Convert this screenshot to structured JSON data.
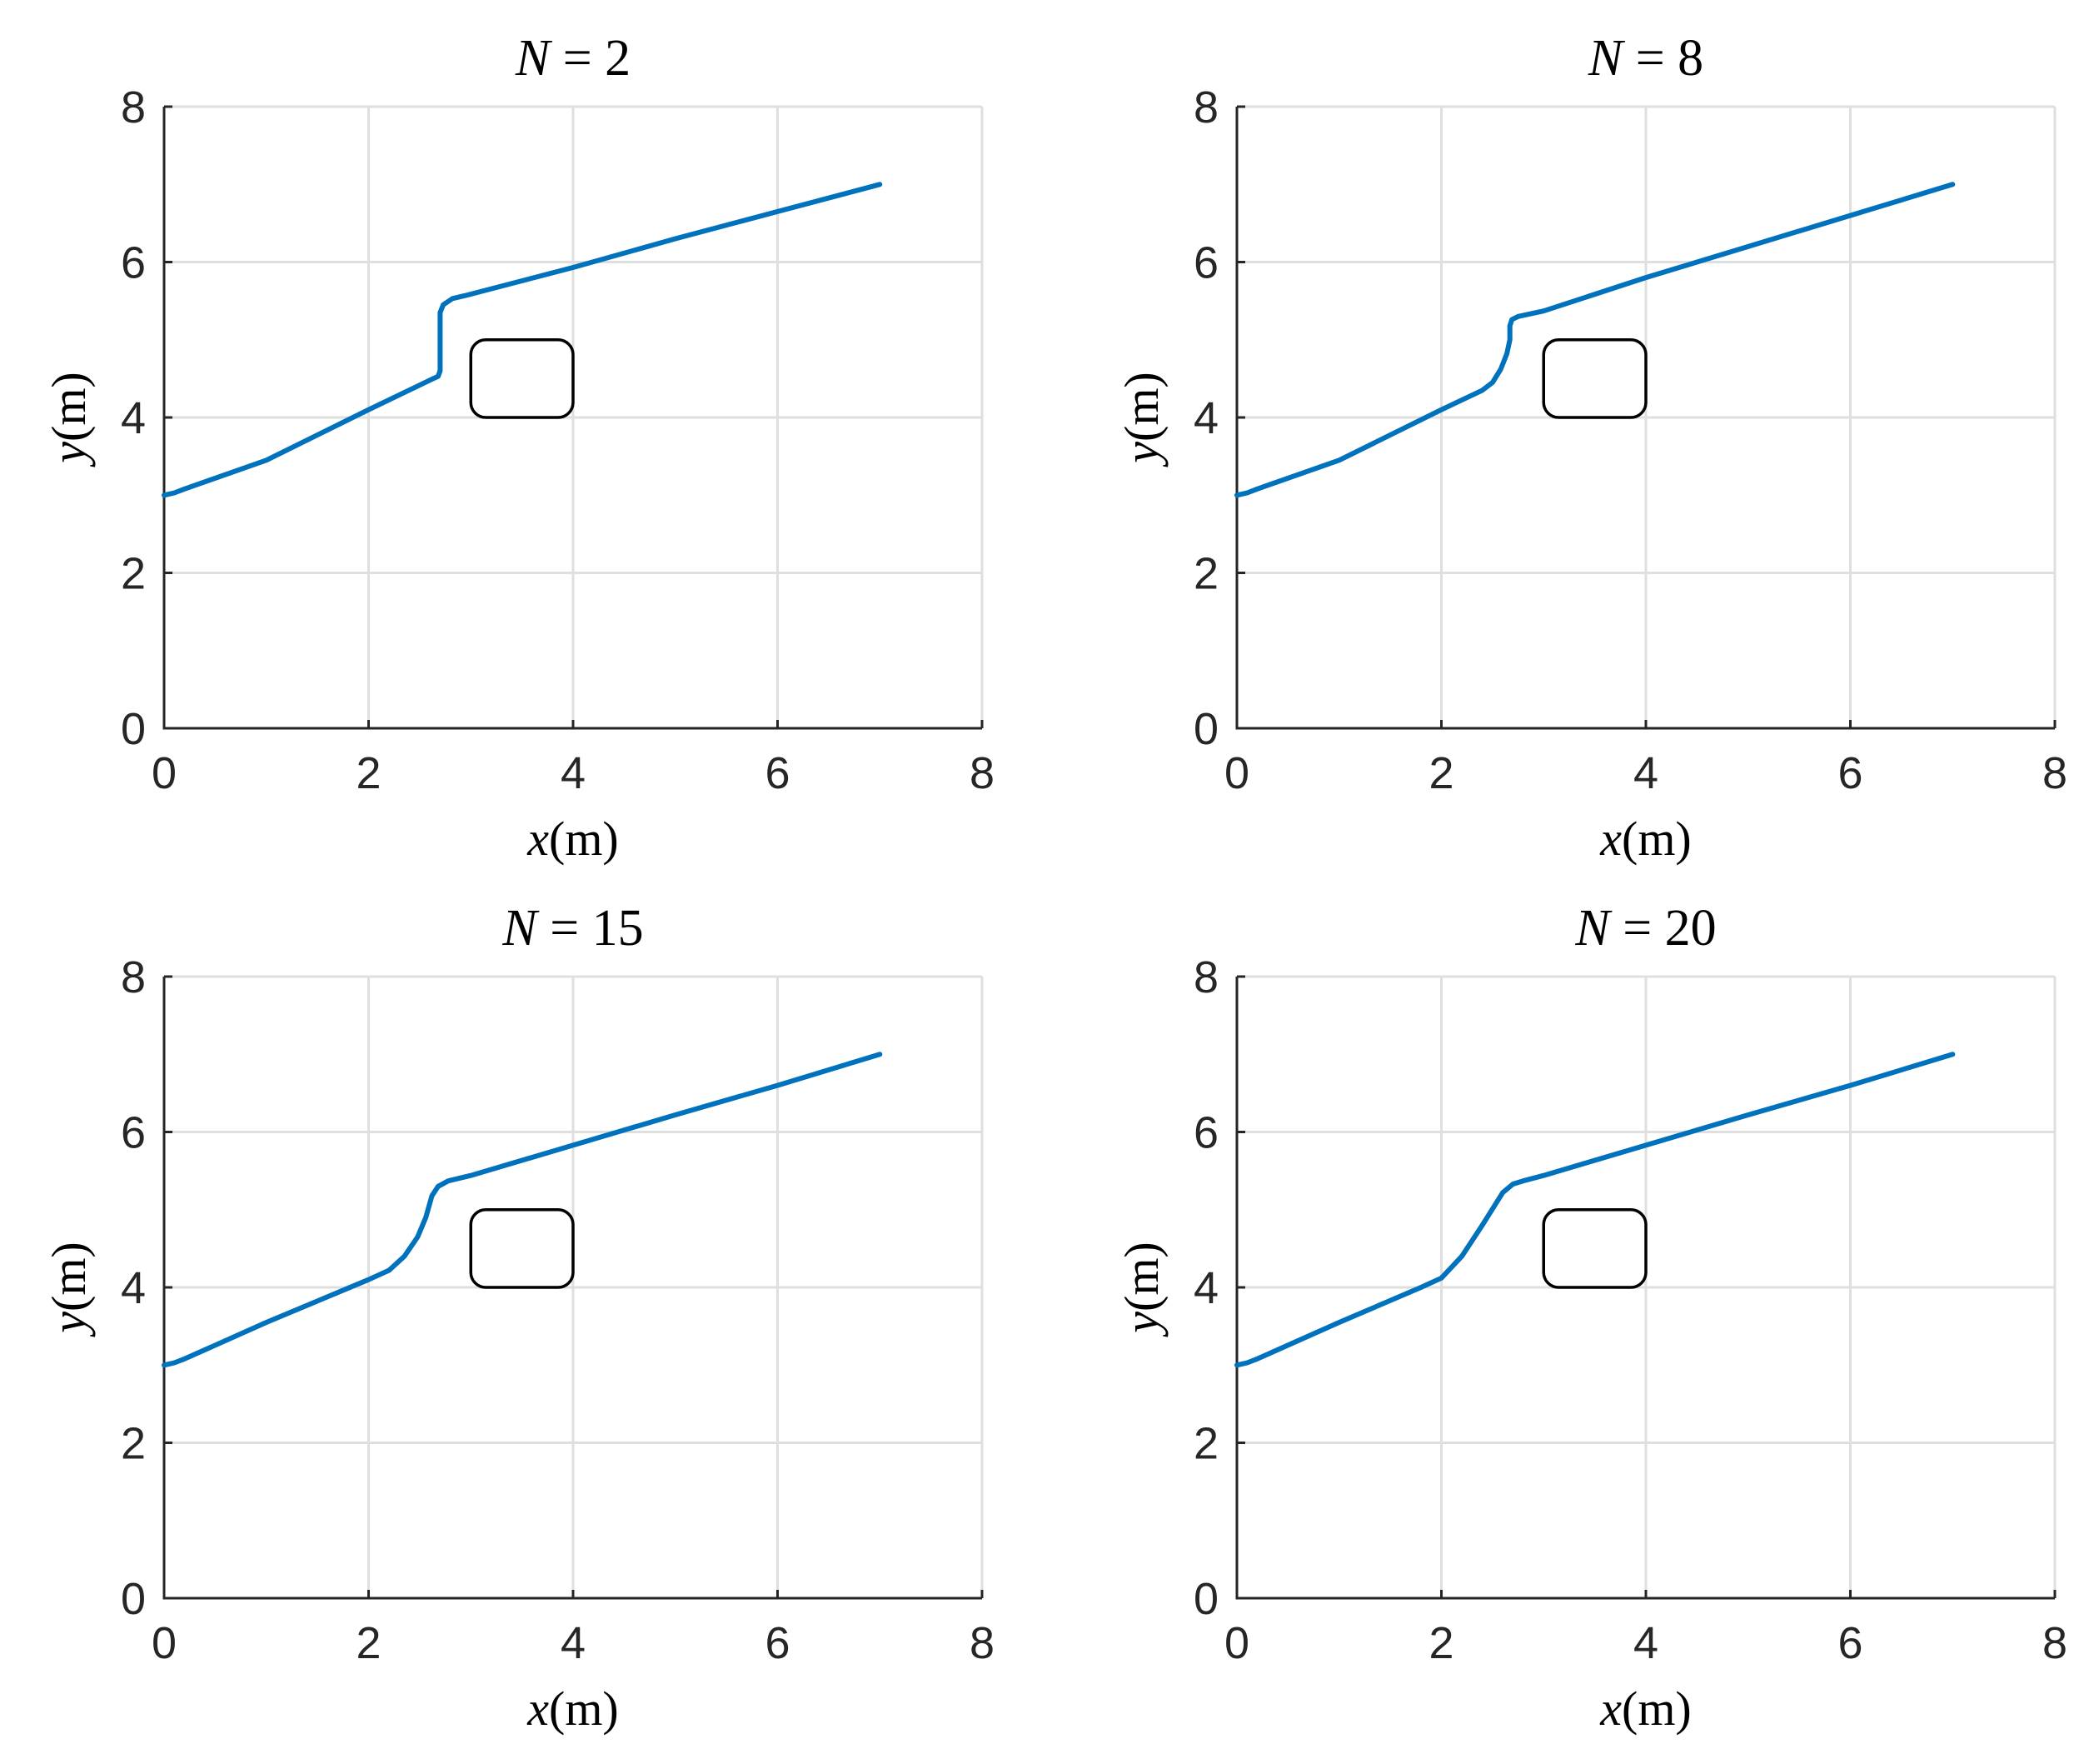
{
  "chart_data": [
    {
      "type": "line",
      "title": "N = 2",
      "title_var": "N",
      "title_rest": " = 2",
      "xlabel_var": "x",
      "xlabel_unit": "(m)",
      "ylabel_var": "y",
      "ylabel_unit": "(m)",
      "xlim": [
        0,
        8
      ],
      "ylim": [
        0,
        8
      ],
      "xticks": [
        0,
        2,
        4,
        6,
        8
      ],
      "yticks": [
        0,
        2,
        4,
        6,
        8
      ],
      "grid": true,
      "series": [
        {
          "color": "#0072bd",
          "x": [
            0,
            0.1,
            0.2,
            1.0,
            2.0,
            2.6,
            2.68,
            2.7,
            2.7,
            2.7,
            2.73,
            2.82,
            2.95,
            4.0,
            5.0,
            6.0,
            7.0
          ],
          "y": [
            3.0,
            3.03,
            3.08,
            3.45,
            4.1,
            4.48,
            4.53,
            4.6,
            5.0,
            5.35,
            5.45,
            5.53,
            5.57,
            5.93,
            6.3,
            6.65,
            7.0
          ]
        }
      ],
      "obstacle": {
        "x": [
          3.0,
          4.0
        ],
        "y": [
          4.0,
          5.0
        ]
      }
    },
    {
      "type": "line",
      "title": "N = 8",
      "title_var": "N",
      "title_rest": " = 8",
      "xlabel_var": "x",
      "xlabel_unit": "(m)",
      "ylabel_var": "y",
      "ylabel_unit": "(m)",
      "xlim": [
        0,
        8
      ],
      "ylim": [
        0,
        8
      ],
      "xticks": [
        0,
        2,
        4,
        6,
        8
      ],
      "yticks": [
        0,
        2,
        4,
        6,
        8
      ],
      "grid": true,
      "series": [
        {
          "color": "#0072bd",
          "x": [
            0,
            0.1,
            0.2,
            1.0,
            2.0,
            2.4,
            2.5,
            2.58,
            2.64,
            2.67,
            2.67,
            2.69,
            2.75,
            3.0,
            4.0,
            5.0,
            6.0,
            7.0
          ],
          "y": [
            3.0,
            3.03,
            3.08,
            3.45,
            4.1,
            4.35,
            4.45,
            4.62,
            4.82,
            5.0,
            5.18,
            5.26,
            5.3,
            5.37,
            5.8,
            6.2,
            6.6,
            7.0
          ]
        }
      ],
      "obstacle": {
        "x": [
          3.0,
          4.0
        ],
        "y": [
          4.0,
          5.0
        ]
      }
    },
    {
      "type": "line",
      "title": "N = 15",
      "title_var": "N",
      "title_rest": " = 15",
      "xlabel_var": "x",
      "xlabel_unit": "(m)",
      "ylabel_var": "y",
      "ylabel_unit": "(m)",
      "xlim": [
        0,
        8
      ],
      "ylim": [
        0,
        8
      ],
      "xticks": [
        0,
        2,
        4,
        6,
        8
      ],
      "yticks": [
        0,
        2,
        4,
        6,
        8
      ],
      "grid": true,
      "series": [
        {
          "color": "#0072bd",
          "x": [
            0,
            0.1,
            0.2,
            1.0,
            2.0,
            2.2,
            2.35,
            2.48,
            2.56,
            2.62,
            2.68,
            2.78,
            3.0,
            4.0,
            5.0,
            6.0,
            7.0
          ],
          "y": [
            3.0,
            3.03,
            3.08,
            3.55,
            4.1,
            4.22,
            4.4,
            4.65,
            4.9,
            5.18,
            5.3,
            5.37,
            5.44,
            5.83,
            6.22,
            6.6,
            7.0
          ]
        }
      ],
      "obstacle": {
        "x": [
          3.0,
          4.0
        ],
        "y": [
          4.0,
          5.0
        ]
      }
    },
    {
      "type": "line",
      "title": "N = 20",
      "title_var": "N",
      "title_rest": " = 20",
      "xlabel_var": "x",
      "xlabel_unit": "(m)",
      "ylabel_var": "y",
      "ylabel_unit": "(m)",
      "xlim": [
        0,
        8
      ],
      "ylim": [
        0,
        8
      ],
      "xticks": [
        0,
        2,
        4,
        6,
        8
      ],
      "yticks": [
        0,
        2,
        4,
        6,
        8
      ],
      "grid": true,
      "series": [
        {
          "color": "#0072bd",
          "x": [
            0,
            0.1,
            0.2,
            1.0,
            1.8,
            2.0,
            2.2,
            2.4,
            2.6,
            2.7,
            2.8,
            3.0,
            4.0,
            5.0,
            6.0,
            7.0
          ],
          "y": [
            3.0,
            3.03,
            3.08,
            3.55,
            4.0,
            4.12,
            4.4,
            4.8,
            5.22,
            5.33,
            5.37,
            5.44,
            5.83,
            6.22,
            6.6,
            7.0
          ]
        }
      ],
      "obstacle": {
        "x": [
          3.0,
          4.0
        ],
        "y": [
          4.0,
          5.0
        ]
      }
    }
  ]
}
